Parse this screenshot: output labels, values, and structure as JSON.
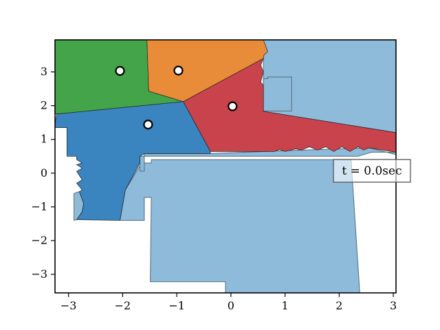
{
  "chart_data": {
    "type": "area",
    "xlim": [
      -3.25,
      3.05
    ],
    "ylim": [
      -3.55,
      3.95
    ],
    "xticks": [
      -3,
      -2,
      -1,
      0,
      1,
      2,
      3
    ],
    "yticks": [
      -3,
      -2,
      -1,
      0,
      1,
      2,
      3
    ],
    "xtick_labels": [
      "−3",
      "−2",
      "−1",
      "0",
      "1",
      "2",
      "3"
    ],
    "ytick_labels": [
      "−3",
      "−2",
      "−1",
      "0",
      "1",
      "2",
      "3"
    ],
    "grid": false,
    "annotation": "t = 0.0sec",
    "colors": {
      "free_space": "#8fbbdb",
      "free_space_edge": "#4f6a7a",
      "blue": "#3a84bf",
      "green": "#44a44a",
      "orange": "#e98c3a",
      "red": "#c8434b"
    },
    "agents": [
      {
        "x": -2.05,
        "y": 3.03
      },
      {
        "x": -0.97,
        "y": 3.04
      },
      {
        "x": 0.03,
        "y": 1.98
      },
      {
        "x": -1.53,
        "y": 1.44
      }
    ],
    "free_space_polygons": [
      [
        [
          0.68,
          3.95
        ],
        [
          3.05,
          3.95
        ],
        [
          3.05,
          1.2
        ],
        [
          0.6,
          1.83
        ],
        [
          0.6,
          3.95
        ]
      ],
      [
        [
          0.68,
          2.85
        ],
        [
          1.12,
          2.85
        ],
        [
          1.12,
          1.84
        ],
        [
          0.6,
          1.84
        ],
        [
          0.6,
          2.8
        ],
        [
          0.68,
          2.8
        ]
      ],
      [
        [
          -1.47,
          0.4
        ],
        [
          2.22,
          0.4
        ],
        [
          2.38,
          -3.55
        ],
        [
          -0.1,
          -3.55
        ],
        [
          -0.1,
          -3.22
        ],
        [
          -1.49,
          -3.22
        ],
        [
          -1.47,
          -0.72
        ],
        [
          -1.6,
          -0.72
        ],
        [
          -1.6,
          -1.4
        ],
        [
          -2.05,
          -1.4
        ],
        [
          -1.95,
          -0.5
        ],
        [
          -1.65,
          0.3
        ],
        [
          -1.47,
          0.3
        ]
      ],
      [
        [
          -1.68,
          0.06
        ],
        [
          -1.68,
          0.5
        ],
        [
          2.35,
          0.5
        ],
        [
          2.6,
          0.62
        ],
        [
          3.05,
          0.62
        ],
        [
          3.05,
          0.55
        ],
        [
          2.55,
          0.75
        ],
        [
          0.6,
          0.64
        ],
        [
          -0.38,
          0.58
        ],
        [
          -1.6,
          0.58
        ],
        [
          -1.6,
          0.06
        ]
      ],
      [
        [
          -2.9,
          -0.6
        ],
        [
          -2.8,
          -0.55
        ],
        [
          -2.72,
          -0.9
        ],
        [
          -2.75,
          -1.15
        ],
        [
          -2.85,
          -1.38
        ],
        [
          -2.9,
          -1.4
        ]
      ]
    ],
    "voronoi_regions": [
      {
        "color": "green",
        "points": [
          [
            -3.25,
            3.95
          ],
          [
            -1.55,
            3.95
          ],
          [
            -1.52,
            2.43
          ],
          [
            -0.88,
            2.12
          ],
          [
            -3.22,
            1.75
          ],
          [
            -3.25,
            1.75
          ]
        ]
      },
      {
        "color": "orange",
        "points": [
          [
            -1.55,
            3.95
          ],
          [
            0.6,
            3.95
          ],
          [
            0.68,
            3.6
          ],
          [
            0.61,
            3.5
          ],
          [
            0.6,
            3.4
          ],
          [
            -0.88,
            2.12
          ],
          [
            -1.52,
            2.43
          ]
        ]
      },
      {
        "color": "red",
        "points": [
          [
            0.6,
            3.4
          ],
          [
            0.55,
            3.2
          ],
          [
            0.6,
            3.0
          ],
          [
            0.55,
            2.7
          ],
          [
            0.6,
            2.6
          ],
          [
            0.6,
            1.83
          ],
          [
            3.05,
            1.2
          ],
          [
            3.05,
            0.62
          ],
          [
            2.55,
            0.75
          ],
          [
            2.45,
            0.68
          ],
          [
            2.35,
            0.78
          ],
          [
            2.2,
            0.64
          ],
          [
            2.05,
            0.78
          ],
          [
            1.9,
            0.64
          ],
          [
            1.75,
            0.78
          ],
          [
            1.6,
            0.68
          ],
          [
            1.45,
            0.78
          ],
          [
            1.3,
            0.68
          ],
          [
            1.2,
            0.72
          ],
          [
            1.0,
            0.64
          ],
          [
            0.9,
            0.7
          ],
          [
            0.8,
            0.64
          ],
          [
            -0.38,
            0.64
          ],
          [
            -0.88,
            2.12
          ]
        ]
      },
      {
        "color": "blue",
        "points": [
          [
            -3.22,
            1.75
          ],
          [
            -0.88,
            2.12
          ],
          [
            -0.38,
            0.64
          ],
          [
            -0.38,
            0.58
          ],
          [
            -1.6,
            0.58
          ],
          [
            -1.68,
            0.5
          ],
          [
            -1.68,
            0.3
          ],
          [
            -1.95,
            -0.5
          ],
          [
            -2.05,
            -1.4
          ],
          [
            -2.85,
            -1.38
          ],
          [
            -2.75,
            -1.15
          ],
          [
            -2.72,
            -0.9
          ],
          [
            -2.8,
            -0.55
          ],
          [
            -2.75,
            -0.5
          ],
          [
            -2.85,
            -0.3
          ],
          [
            -2.75,
            -0.2
          ],
          [
            -2.85,
            0.05
          ],
          [
            -2.75,
            0.15
          ],
          [
            -2.85,
            0.25
          ],
          [
            -2.75,
            0.3
          ],
          [
            -2.85,
            0.4
          ],
          [
            -2.85,
            0.5
          ],
          [
            -3.03,
            0.5
          ],
          [
            -3.03,
            1.35
          ],
          [
            -3.25,
            1.35
          ],
          [
            -3.25,
            1.45
          ]
        ]
      }
    ]
  }
}
